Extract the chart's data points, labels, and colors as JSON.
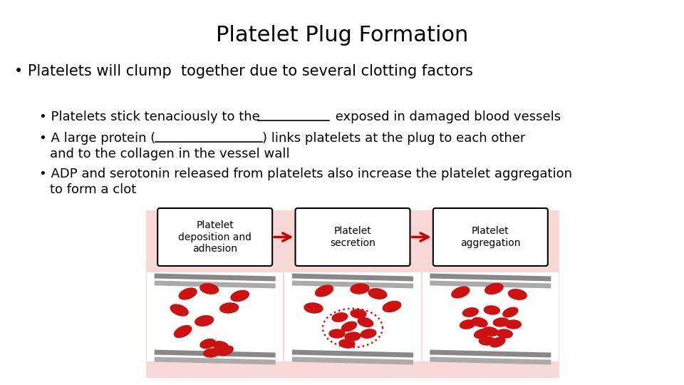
{
  "title": "Platelet Plug Formation",
  "title_fontsize": 22,
  "title_font": "DejaVu Sans",
  "bg_color": "#ffffff",
  "bullet1": "Platelets will clump  together due to several clotting factors",
  "bullet1_fontsize": 15,
  "sub_bullet_fontsize": 13,
  "diagram_bg": "#f8d7d7",
  "box_labels": [
    "Platelet\ndeposition and\nadhesion",
    "Platelet\nsecretion",
    "Platelet\naggregation"
  ],
  "arrow_color": "#cc0000",
  "platelet_color": "#cc1111",
  "vessel_color": "#888888",
  "vessel_color2": "#aaaaaa"
}
